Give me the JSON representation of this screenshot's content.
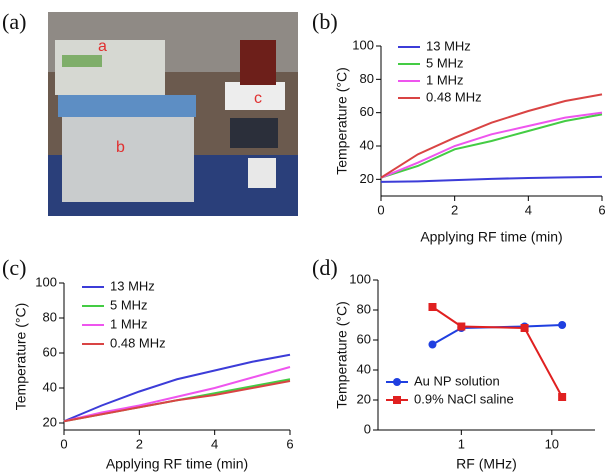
{
  "photo": {
    "panel_label": "(a)",
    "annotations": [
      "a",
      "b",
      "c"
    ]
  },
  "chart_data": [
    {
      "type": "line",
      "panel_label": "(b)",
      "xlabel": "Applying RF time (min)",
      "ylabel": "Temperature (°C)",
      "x": [
        0,
        1,
        2,
        3,
        4,
        5,
        6
      ],
      "xlim": [
        0,
        6
      ],
      "xticks": [
        0,
        2,
        4,
        6
      ],
      "ylim": [
        10,
        100
      ],
      "yticks": [
        20,
        40,
        60,
        80,
        100
      ],
      "series": [
        {
          "name": "13 MHz",
          "color": "#3c3cd8",
          "values": [
            18.5,
            18.8,
            19.5,
            20.3,
            20.8,
            21.2,
            21.5
          ]
        },
        {
          "name": "5 MHz",
          "color": "#44cc44",
          "values": [
            21,
            28,
            38,
            43,
            49,
            55,
            59
          ]
        },
        {
          "name": "1 MHz",
          "color": "#ee55ee",
          "values": [
            21,
            30,
            40,
            47,
            52,
            57,
            60
          ]
        },
        {
          "name": "0.48 MHz",
          "color": "#d94444",
          "values": [
            21,
            35,
            45,
            54,
            61,
            67,
            71
          ]
        }
      ]
    },
    {
      "type": "line",
      "panel_label": "(c)",
      "xlabel": "Applying RF time (min)",
      "ylabel": "Temperature (°C)",
      "x": [
        0,
        1,
        2,
        3,
        4,
        5,
        6
      ],
      "xlim": [
        0,
        6
      ],
      "xticks": [
        0,
        2,
        4,
        6
      ],
      "ylim": [
        16,
        100
      ],
      "yticks": [
        20,
        40,
        60,
        80,
        100
      ],
      "series": [
        {
          "name": "13 MHz",
          "color": "#3c3cd8",
          "values": [
            21,
            30,
            38,
            45,
            50,
            55,
            59
          ]
        },
        {
          "name": "5 MHz",
          "color": "#44cc44",
          "values": [
            21,
            25,
            29,
            33,
            37,
            41,
            45
          ]
        },
        {
          "name": "1 MHz",
          "color": "#ee55ee",
          "values": [
            21,
            26,
            30,
            35,
            40,
            46,
            52
          ]
        },
        {
          "name": "0.48 MHz",
          "color": "#d94444",
          "values": [
            21,
            25,
            29,
            33,
            36,
            40,
            44
          ]
        }
      ]
    },
    {
      "type": "line",
      "panel_label": "(d)",
      "xlabel": "RF (MHz)",
      "ylabel": "Temperature (°C)",
      "xscale": "log",
      "x": [
        0.48,
        1,
        5,
        13
      ],
      "xlim": [
        0.12,
        30
      ],
      "xticks": [
        1,
        10
      ],
      "ylim": [
        0,
        100
      ],
      "yticks": [
        0,
        20,
        40,
        60,
        80,
        100
      ],
      "series": [
        {
          "name": "Au NP solution",
          "color": "#1f3fe0",
          "marker": "circle",
          "values": [
            57,
            68,
            69,
            70
          ]
        },
        {
          "name": "0.9% NaCl saline",
          "color": "#e02020",
          "marker": "square",
          "values": [
            82,
            69,
            68,
            22
          ]
        }
      ]
    }
  ]
}
